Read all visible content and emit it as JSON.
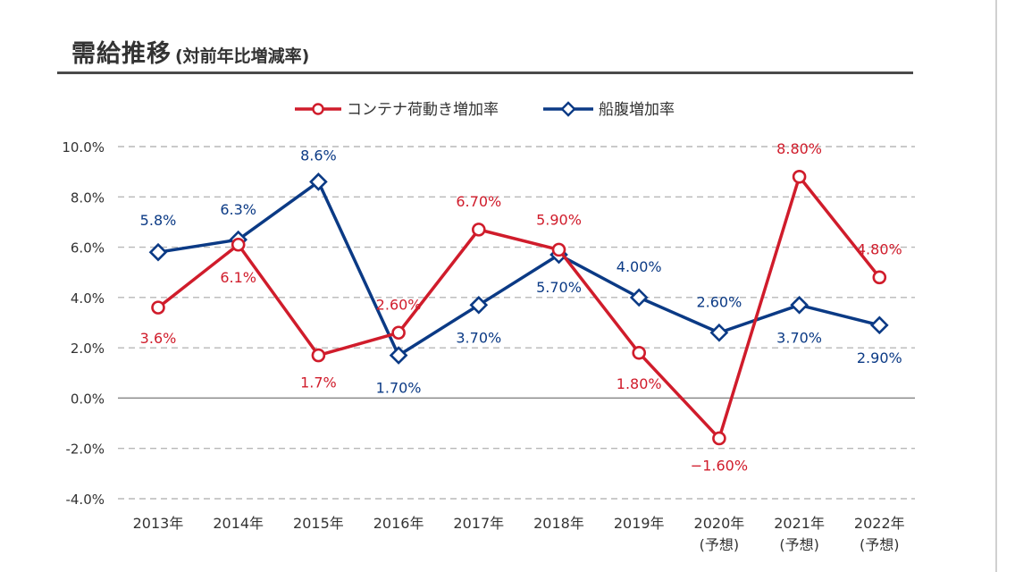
{
  "title": {
    "main": "需給推移",
    "sub": "(対前年比増減率)"
  },
  "footnote": "",
  "colors": {
    "container": "#d01c2b",
    "ship": "#0b3a85",
    "grid": "#b8b8b8",
    "zero": "#8a8a8a",
    "text": "#333333"
  },
  "chart_data": {
    "type": "line",
    "categories": [
      "2013年",
      "2014年",
      "2015年",
      "2016年",
      "2017年",
      "2018年",
      "2019年",
      "2020年\n(予想)",
      "2021年\n(予想)",
      "2022年\n(予想)"
    ],
    "ylim": [
      -4.0,
      10.0
    ],
    "yticks": [
      -4.0,
      -2.0,
      0.0,
      2.0,
      4.0,
      6.0,
      8.0,
      10.0
    ],
    "ytick_labels": [
      "-4.0%",
      "-2.0%",
      "0.0%",
      "2.0%",
      "4.0%",
      "6.0%",
      "8.0%",
      "10.0%"
    ],
    "grid": true,
    "legend_position": "top-center",
    "series": [
      {
        "name": "コンテナ荷動き増加率",
        "marker": "circle",
        "color": "#d01c2b",
        "values": [
          3.6,
          6.1,
          1.7,
          2.6,
          6.7,
          5.9,
          1.8,
          -1.6,
          8.8,
          4.8
        ],
        "labels": [
          "3.6%",
          "6.1%",
          "1.7%",
          "2.60%",
          "6.70%",
          "5.90%",
          "1.80%",
          "−1.60%",
          "8.80%",
          "4.80%"
        ]
      },
      {
        "name": "船腹増加率",
        "marker": "diamond",
        "color": "#0b3a85",
        "values": [
          5.8,
          6.3,
          8.6,
          1.7,
          3.7,
          5.7,
          4.0,
          2.6,
          3.7,
          2.9
        ],
        "labels": [
          "5.8%",
          "6.3%",
          "8.6%",
          "1.70%",
          "3.70%",
          "5.70%",
          "4.00%",
          "2.60%",
          "3.70%",
          "2.90%"
        ]
      }
    ]
  }
}
